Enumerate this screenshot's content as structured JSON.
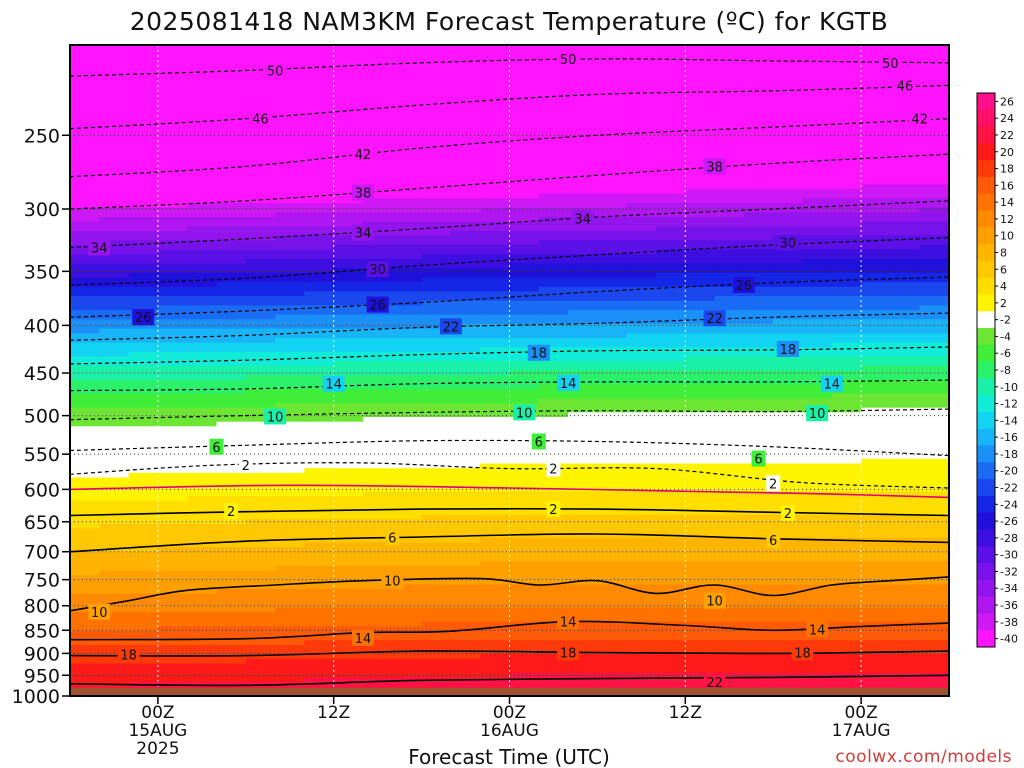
{
  "title": "2025081418 NAM3KM Forecast Temperature (ºC) for KGTB",
  "credit": "coolwx.com/models",
  "chart_data": {
    "type": "heatmap",
    "title": "2025081418 NAM3KM Forecast Temperature (ºC) for KGTB",
    "xlabel": "Forecast Time (UTC)",
    "ylabel": "",
    "x_ticks": [
      {
        "hour": 6,
        "lines": [
          "00Z",
          "15AUG",
          "2025"
        ]
      },
      {
        "hour": 18,
        "lines": [
          "12Z"
        ]
      },
      {
        "hour": 30,
        "lines": [
          "00Z",
          "16AUG"
        ]
      },
      {
        "hour": 42,
        "lines": [
          "12Z"
        ]
      },
      {
        "hour": 54,
        "lines": [
          "00Z",
          "17AUG"
        ]
      }
    ],
    "xlim": [
      0,
      60
    ],
    "y_ticks": [
      250,
      300,
      350,
      400,
      450,
      500,
      550,
      600,
      650,
      700,
      750,
      800,
      850,
      900,
      950,
      1000
    ],
    "ylim": [
      200,
      1000
    ],
    "y_scale": "log-pressure",
    "grid": true,
    "surface_pressure": 980,
    "surface_color": "#a0522d",
    "colorbar": {
      "position": "right",
      "labels": [
        "26",
        "24",
        "22",
        "20",
        "18",
        "16",
        "14",
        "12",
        "10",
        "8",
        "6",
        "4",
        "2",
        "-2",
        "-4",
        "-6",
        "-8",
        "-10",
        "-12",
        "-14",
        "-16",
        "-18",
        "-20",
        "-22",
        "-24",
        "-26",
        "-28",
        "-30",
        "-32",
        "-34",
        "-36",
        "-38",
        "-40"
      ],
      "colors": [
        "#ff0f8a",
        "#ff0f68",
        "#ff1244",
        "#ff1a1a",
        "#ff3a0a",
        "#ff5a08",
        "#ff7200",
        "#ff8a00",
        "#ffa000",
        "#ffb400",
        "#ffc800",
        "#ffde00",
        "#fff400",
        "#ffffff",
        "#6ce632",
        "#40ee3a",
        "#2af06a",
        "#1af0a8",
        "#10ecd8",
        "#12d4f2",
        "#18b4f8",
        "#1a90f8",
        "#1a6cf4",
        "#1a48ee",
        "#1626e6",
        "#2010dc",
        "#3c0ee0",
        "#5a10e6",
        "#7812ea",
        "#9414ee",
        "#b016f2",
        "#ce18f6",
        "#ff14ff"
      ]
    },
    "profiles": [
      {
        "hour": 0,
        "temps": [
          -53,
          -50,
          -38,
          -27,
          -17,
          -9,
          -3,
          3,
          8,
          13,
          16,
          20,
          23
        ]
      },
      {
        "hour": 30,
        "temps": [
          -53,
          -48,
          -36,
          -25,
          -16,
          -8,
          -2,
          4,
          9,
          14,
          17,
          21,
          24
        ]
      },
      {
        "hour": 60,
        "temps": [
          -52,
          -46,
          -34,
          -24,
          -15,
          -7,
          -1,
          4,
          9,
          14,
          17,
          21,
          24
        ]
      }
    ],
    "profile_levels": [
      200,
      250,
      300,
      350,
      400,
      450,
      500,
      600,
      700,
      800,
      850,
      925,
      1000
    ],
    "contours": [
      {
        "level": -50,
        "style": "dashed",
        "points": [
          [
            0,
            216
          ],
          [
            12,
            213
          ],
          [
            24,
            209
          ],
          [
            36,
            207
          ],
          [
            48,
            208
          ],
          [
            60,
            209
          ]
        ],
        "labels": [
          [
            14,
            213
          ],
          [
            34,
            207
          ],
          [
            56,
            209
          ]
        ]
      },
      {
        "level": -46,
        "style": "dashed",
        "points": [
          [
            0,
            246
          ],
          [
            12,
            240
          ],
          [
            24,
            232
          ],
          [
            36,
            226
          ],
          [
            48,
            224
          ],
          [
            60,
            221
          ]
        ],
        "labels": [
          [
            13,
            240
          ],
          [
            57,
            221
          ]
        ]
      },
      {
        "level": -42,
        "style": "dashed",
        "points": [
          [
            0,
            277
          ],
          [
            12,
            270
          ],
          [
            24,
            258
          ],
          [
            36,
            250
          ],
          [
            48,
            245
          ],
          [
            60,
            240
          ]
        ],
        "labels": [
          [
            20,
            262
          ],
          [
            58,
            240
          ]
        ]
      },
      {
        "level": -38,
        "style": "dashed",
        "points": [
          [
            0,
            300
          ],
          [
            12,
            294
          ],
          [
            24,
            285
          ],
          [
            36,
            276
          ],
          [
            48,
            268
          ],
          [
            60,
            262
          ]
        ],
        "labels": [
          [
            20,
            288
          ],
          [
            44,
            270
          ]
        ]
      },
      {
        "level": -34,
        "style": "dashed",
        "points": [
          [
            0,
            330
          ],
          [
            12,
            323
          ],
          [
            24,
            315
          ],
          [
            36,
            306
          ],
          [
            48,
            300
          ],
          [
            60,
            294
          ]
        ],
        "labels": [
          [
            2,
            330
          ],
          [
            20,
            318
          ],
          [
            35,
            307
          ]
        ]
      },
      {
        "level": -30,
        "style": "dashed",
        "points": [
          [
            0,
            362
          ],
          [
            12,
            356
          ],
          [
            24,
            345
          ],
          [
            36,
            336
          ],
          [
            48,
            328
          ],
          [
            60,
            322
          ]
        ],
        "labels": [
          [
            21,
            348
          ],
          [
            49,
            326
          ]
        ]
      },
      {
        "level": -26,
        "style": "dashed",
        "points": [
          [
            0,
            392
          ],
          [
            12,
            386
          ],
          [
            24,
            378
          ],
          [
            36,
            368
          ],
          [
            48,
            360
          ],
          [
            60,
            355
          ]
        ],
        "labels": [
          [
            5,
            392
          ],
          [
            21,
            380
          ],
          [
            46,
            362
          ]
        ]
      },
      {
        "level": -22,
        "style": "dashed",
        "points": [
          [
            0,
            415
          ],
          [
            12,
            410
          ],
          [
            24,
            402
          ],
          [
            36,
            398
          ],
          [
            48,
            392
          ],
          [
            60,
            388
          ]
        ],
        "labels": [
          [
            26,
            401
          ],
          [
            44,
            393
          ]
        ]
      },
      {
        "level": -18,
        "style": "dashed",
        "points": [
          [
            0,
            440
          ],
          [
            12,
            436
          ],
          [
            24,
            430
          ],
          [
            36,
            426
          ],
          [
            48,
            425
          ],
          [
            60,
            422
          ]
        ],
        "labels": [
          [
            32,
            428
          ],
          [
            49,
            424
          ]
        ]
      },
      {
        "level": -14,
        "style": "dashed",
        "points": [
          [
            0,
            470
          ],
          [
            12,
            468
          ],
          [
            24,
            462
          ],
          [
            36,
            460
          ],
          [
            48,
            460
          ],
          [
            60,
            458
          ]
        ],
        "labels": [
          [
            18,
            462
          ],
          [
            34,
            461
          ],
          [
            52,
            462
          ]
        ]
      },
      {
        "level": -10,
        "style": "dashed",
        "points": [
          [
            0,
            505
          ],
          [
            12,
            500
          ],
          [
            24,
            496
          ],
          [
            36,
            494
          ],
          [
            48,
            495
          ],
          [
            60,
            492
          ]
        ],
        "labels": [
          [
            14,
            501
          ],
          [
            31,
            496
          ],
          [
            51,
            497
          ]
        ]
      },
      {
        "level": -6,
        "style": "dashed",
        "points": [
          [
            0,
            545
          ],
          [
            12,
            538
          ],
          [
            24,
            532
          ],
          [
            36,
            533
          ],
          [
            48,
            540
          ],
          [
            60,
            552
          ]
        ],
        "labels": [
          [
            10,
            540
          ],
          [
            32,
            533
          ],
          [
            47,
            556
          ]
        ]
      },
      {
        "level": -2,
        "style": "dashed",
        "points": [
          [
            0,
            578
          ],
          [
            10,
            565
          ],
          [
            20,
            562
          ],
          [
            30,
            570
          ],
          [
            40,
            570
          ],
          [
            50,
            590
          ],
          [
            60,
            598
          ]
        ],
        "labels": [
          [
            12,
            565
          ],
          [
            33,
            570
          ],
          [
            48,
            591
          ]
        ]
      },
      {
        "level": 0,
        "style": "solid",
        "color": "#e0007a",
        "points": [
          [
            0,
            600
          ],
          [
            15,
            594
          ],
          [
            30,
            598
          ],
          [
            45,
            604
          ],
          [
            52,
            607
          ],
          [
            60,
            612
          ]
        ],
        "labels": []
      },
      {
        "level": 2,
        "style": "solid",
        "points": [
          [
            0,
            640
          ],
          [
            12,
            634
          ],
          [
            24,
            630
          ],
          [
            36,
            630
          ],
          [
            48,
            635
          ],
          [
            60,
            640
          ]
        ],
        "labels": [
          [
            11,
            633
          ],
          [
            33,
            630
          ],
          [
            49,
            636
          ]
        ]
      },
      {
        "level": 6,
        "style": "solid",
        "points": [
          [
            0,
            700
          ],
          [
            12,
            682
          ],
          [
            24,
            675
          ],
          [
            36,
            670
          ],
          [
            48,
            678
          ],
          [
            60,
            684
          ]
        ],
        "labels": [
          [
            22,
            676
          ],
          [
            48,
            680
          ]
        ]
      },
      {
        "level": 10,
        "style": "solid",
        "points": [
          [
            0,
            810
          ],
          [
            4,
            790
          ],
          [
            8,
            770
          ],
          [
            14,
            760
          ],
          [
            20,
            752
          ],
          [
            28,
            748
          ],
          [
            32,
            760
          ],
          [
            36,
            752
          ],
          [
            40,
            776
          ],
          [
            44,
            760
          ],
          [
            48,
            780
          ],
          [
            52,
            760
          ],
          [
            56,
            752
          ],
          [
            60,
            745
          ]
        ],
        "labels": [
          [
            2,
            812
          ],
          [
            22,
            752
          ],
          [
            44,
            790
          ]
        ]
      },
      {
        "level": 14,
        "style": "solid",
        "points": [
          [
            0,
            870
          ],
          [
            12,
            868
          ],
          [
            20,
            855
          ],
          [
            26,
            852
          ],
          [
            34,
            832
          ],
          [
            42,
            840
          ],
          [
            48,
            850
          ],
          [
            54,
            842
          ],
          [
            60,
            835
          ]
        ],
        "labels": [
          [
            20,
            866
          ],
          [
            34,
            832
          ],
          [
            51,
            848
          ]
        ]
      },
      {
        "level": 18,
        "style": "solid",
        "points": [
          [
            0,
            905
          ],
          [
            12,
            905
          ],
          [
            24,
            895
          ],
          [
            36,
            898
          ],
          [
            48,
            900
          ],
          [
            60,
            895
          ]
        ],
        "labels": [
          [
            4,
            903
          ],
          [
            34,
            898
          ],
          [
            50,
            898
          ]
        ]
      },
      {
        "level": 22,
        "style": "solid",
        "points": [
          [
            0,
            970
          ],
          [
            12,
            974
          ],
          [
            24,
            962
          ],
          [
            36,
            958
          ],
          [
            48,
            955
          ],
          [
            60,
            950
          ]
        ],
        "labels": [
          [
            44,
            966
          ]
        ]
      }
    ]
  }
}
